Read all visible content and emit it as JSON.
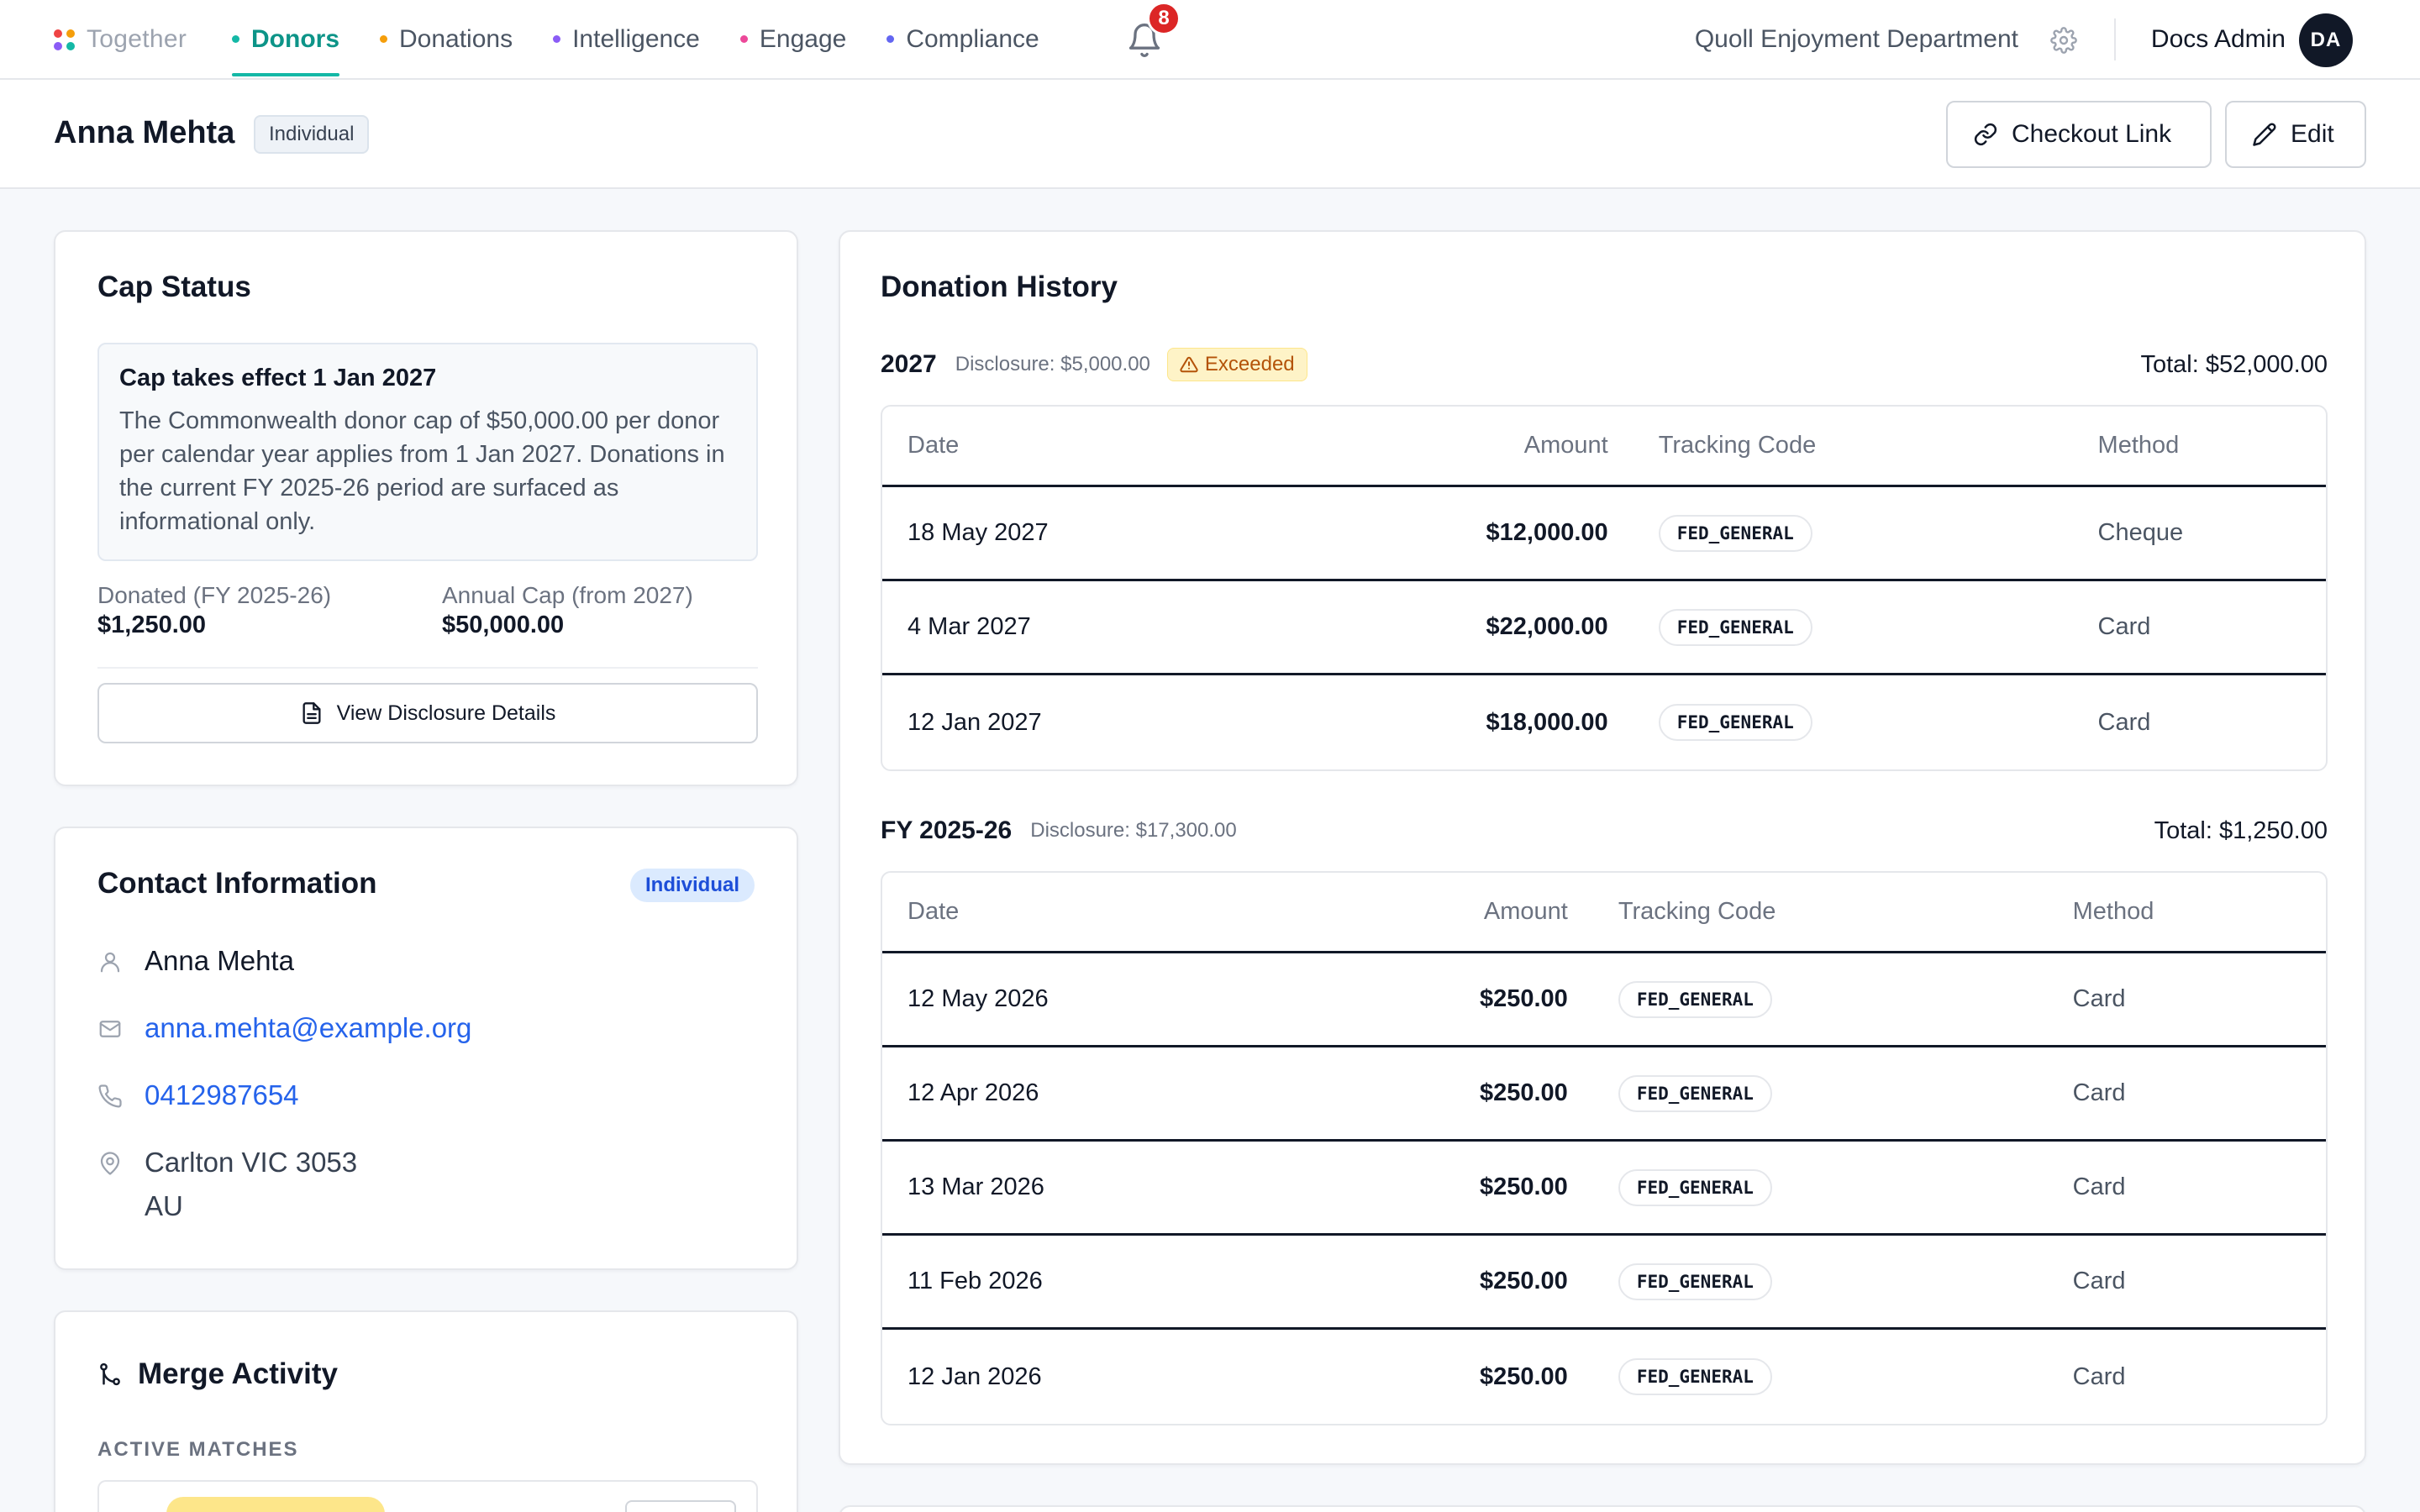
{
  "nav": {
    "brand": "Together",
    "brand_dots": [
      "#ef4444",
      "#f59e0b",
      "#8b5cf6",
      "#14b8a6"
    ],
    "items": [
      {
        "label": "Donors",
        "dot": "#14b8a6",
        "active": true
      },
      {
        "label": "Donations",
        "dot": "#f59e0b",
        "active": false
      },
      {
        "label": "Intelligence",
        "dot": "#8b5cf6",
        "active": false
      },
      {
        "label": "Engage",
        "dot": "#ec4899",
        "active": false
      },
      {
        "label": "Compliance",
        "dot": "#6366f1",
        "active": false
      }
    ],
    "notification_count": "8",
    "org_name": "Quoll Enjoyment Department",
    "user_name": "Docs Admin",
    "user_initials": "DA"
  },
  "header": {
    "donor_name": "Anna Mehta",
    "donor_type": "Individual",
    "checkout_label": "Checkout Link",
    "edit_label": "Edit"
  },
  "cap_status": {
    "title": "Cap Status",
    "notice_title": "Cap takes effect 1 Jan 2027",
    "notice_body": "The Commonwealth donor cap of $50,000.00 per donor per calendar year applies from 1 Jan 2027. Donations in the current FY 2025-26 period are surfaced as informational only.",
    "donated_label": "Donated (FY 2025-26)",
    "donated_value": "$1,250.00",
    "cap_label": "Annual Cap (from 2027)",
    "cap_value": "$50,000.00",
    "button_label": "View Disclosure Details"
  },
  "contact": {
    "title": "Contact Information",
    "type_badge": "Individual",
    "name": "Anna Mehta",
    "email": "anna.mehta@example.org",
    "phone": "0412987654",
    "address_line1": "Carlton VIC 3053",
    "address_line2": "AU"
  },
  "merge": {
    "title": "Merge Activity",
    "section_label": "ACTIVE MATCHES"
  },
  "history": {
    "title": "Donation History",
    "columns": {
      "date": "Date",
      "amount": "Amount",
      "code": "Tracking Code",
      "method": "Method"
    },
    "groups": [
      {
        "year": "2027",
        "disclosure": "Disclosure: $5,000.00",
        "warning": "Exceeded",
        "total": "Total: $52,000.00",
        "rows": [
          {
            "date": "18 May 2027",
            "amount": "$12,000.00",
            "code": "FED_GENERAL",
            "method": "Cheque"
          },
          {
            "date": "4 Mar 2027",
            "amount": "$22,000.00",
            "code": "FED_GENERAL",
            "method": "Card"
          },
          {
            "date": "12 Jan 2027",
            "amount": "$18,000.00",
            "code": "FED_GENERAL",
            "method": "Card"
          }
        ]
      },
      {
        "year": "FY 2025-26",
        "disclosure": "Disclosure: $17,300.00",
        "total": "Total: $1,250.00",
        "rows": [
          {
            "date": "12 May 2026",
            "amount": "$250.00",
            "code": "FED_GENERAL",
            "method": "Card"
          },
          {
            "date": "12 Apr 2026",
            "amount": "$250.00",
            "code": "FED_GENERAL",
            "method": "Card"
          },
          {
            "date": "13 Mar 2026",
            "amount": "$250.00",
            "code": "FED_GENERAL",
            "method": "Card"
          },
          {
            "date": "11 Feb 2026",
            "amount": "$250.00",
            "code": "FED_GENERAL",
            "method": "Card"
          },
          {
            "date": "12 Jan 2026",
            "amount": "$250.00",
            "code": "FED_GENERAL",
            "method": "Card"
          }
        ]
      }
    ]
  }
}
